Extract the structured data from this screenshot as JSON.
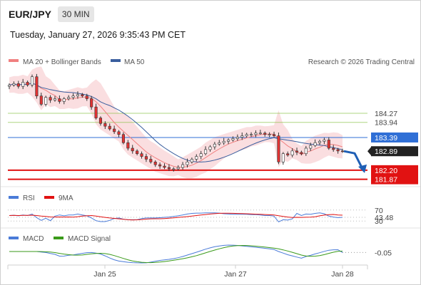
{
  "header": {
    "symbol": "EUR/JPY",
    "timeframe": "30 MIN"
  },
  "timestamp": "Tuesday, January 27, 2026 9:35:43 PM CET",
  "legend": {
    "ma20_bb": "MA 20 + Bollinger Bands",
    "ma50": "MA 50",
    "source": "Research © 2026 Trading Central",
    "rsi": "RSI",
    "rsi_ma": "9MA",
    "macd": "MACD",
    "macd_signal": "MACD Signal"
  },
  "colors": {
    "bb_band": "#f5b6bb",
    "ma20": "#f08080",
    "ma50": "#3a5e9e",
    "candle_up": "#ffffff",
    "candle_down": "#e23232",
    "resistance": "#8bc34a",
    "pivot": "#2f6fd6",
    "support": "#e11212",
    "forecast": "#1f5fb5",
    "rsi": "#4a7bd8",
    "rsi_ma": "#e11212",
    "macd": "#4a7bd8",
    "macd_signal": "#3a9a1a"
  },
  "chart_data": {
    "type": "candlestick",
    "symbol": "EUR/JPY",
    "interval": "30 MIN",
    "ylim": [
      181.6,
      185.8
    ],
    "x_ticks": [
      "Jan 25",
      "Jan 27",
      "Jan 28"
    ],
    "levels": [
      {
        "label": "184.27",
        "value": 184.27,
        "role": "resistance"
      },
      {
        "label": "183.94",
        "value": 183.94,
        "role": "resistance"
      },
      {
        "label": "183.39",
        "value": 183.39,
        "role": "pivot"
      },
      {
        "label": "182.89",
        "value": 182.89,
        "role": "last"
      },
      {
        "label": "182.20",
        "value": 182.2,
        "role": "support"
      },
      {
        "label": "181.87",
        "value": 181.87,
        "role": "support"
      }
    ],
    "close_path": [
      185.3,
      185.35,
      185.25,
      185.4,
      185.3,
      185.6,
      184.9,
      184.6,
      184.85,
      184.75,
      184.8,
      184.7,
      184.8,
      184.85,
      184.9,
      184.95,
      184.9,
      184.8,
      184.5,
      184.1,
      183.9,
      183.8,
      183.7,
      183.6,
      183.5,
      183.2,
      183.0,
      182.9,
      182.8,
      182.7,
      182.6,
      182.5,
      182.4,
      182.35,
      182.3,
      182.25,
      182.25,
      182.3,
      182.4,
      182.5,
      182.6,
      182.7,
      182.8,
      182.95,
      183.05,
      183.15,
      183.2,
      183.25,
      183.3,
      183.35,
      183.4,
      183.45,
      183.5,
      183.5,
      183.55,
      183.55,
      183.5,
      183.5,
      183.45,
      182.5,
      182.8,
      182.75,
      182.9,
      182.85,
      182.8,
      183.0,
      183.1,
      183.2,
      183.25,
      183.3,
      183.0,
      182.95,
      182.9,
      182.89
    ],
    "forecast_target": 182.2,
    "rsi": {
      "levels": [
        "70",
        "43.48",
        "30"
      ],
      "current": 43.48
    },
    "macd": {
      "current": -0.05,
      "label": "-0.05"
    }
  }
}
